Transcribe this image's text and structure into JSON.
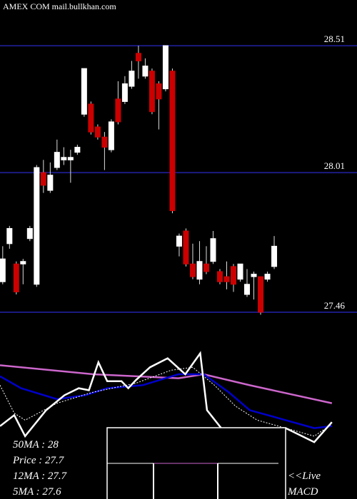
{
  "chart_data": [
    {
      "type": "candlestick",
      "title": "AMEX  COM mail.bullkhan.com",
      "x": [
        0,
        1,
        2,
        3,
        4,
        5,
        6,
        7,
        8,
        9,
        10,
        11,
        12,
        13,
        14,
        15,
        16,
        17,
        18,
        19,
        20,
        21,
        22,
        23,
        24,
        25,
        26,
        27,
        28,
        29,
        30,
        31,
        32,
        33,
        34,
        35,
        36,
        37,
        38,
        39,
        40
      ],
      "open": [
        27.58,
        27.73,
        27.65,
        27.65,
        27.75,
        27.57,
        28.01,
        27.94,
        28.03,
        28.06,
        28.06,
        28.09,
        28.24,
        28.28,
        28.19,
        28.15,
        28.1,
        28.3,
        28.29,
        28.35,
        28.48,
        28.39,
        28.41,
        28.36,
        28.34,
        28.41,
        27.72,
        27.78,
        27.65,
        27.59,
        27.65,
        27.66,
        27.62,
        27.6,
        27.64,
        27.59,
        27.53,
        27.6,
        27.6,
        27.59,
        27.64
      ],
      "high": [
        27.72,
        27.8,
        27.66,
        27.67,
        27.8,
        28.04,
        28.06,
        28.05,
        28.14,
        28.11,
        28.1,
        28.12,
        28.42,
        28.29,
        28.2,
        28.17,
        28.22,
        28.37,
        28.39,
        28.45,
        28.51,
        28.46,
        28.42,
        28.37,
        28.51,
        28.42,
        27.77,
        27.79,
        27.73,
        27.74,
        27.72,
        27.78,
        27.63,
        27.66,
        27.65,
        27.65,
        27.63,
        27.62,
        27.6,
        27.62,
        27.76
      ],
      "low": [
        27.57,
        27.71,
        27.53,
        27.57,
        27.74,
        27.56,
        27.93,
        27.93,
        28.02,
        28.04,
        27.97,
        28.08,
        28.23,
        28.16,
        28.14,
        28.02,
        28.09,
        28.2,
        28.28,
        28.34,
        28.38,
        28.38,
        28.24,
        28.18,
        28.33,
        27.85,
        27.68,
        27.64,
        27.59,
        27.57,
        27.61,
        27.65,
        27.57,
        27.55,
        27.54,
        27.58,
        27.52,
        27.51,
        27.45,
        27.58,
        27.63
      ],
      "close": [
        27.67,
        27.79,
        27.54,
        27.66,
        27.79,
        28.03,
        27.96,
        28.0,
        28.09,
        28.07,
        28.07,
        28.11,
        28.42,
        28.17,
        28.15,
        28.11,
        28.21,
        28.21,
        28.36,
        28.41,
        28.45,
        28.43,
        28.25,
        28.3,
        28.51,
        27.86,
        27.76,
        27.65,
        27.6,
        27.66,
        27.62,
        27.75,
        27.58,
        27.58,
        27.57,
        27.65,
        27.57,
        27.61,
        27.46,
        27.61,
        27.72
      ],
      "up_color": "#ffffff",
      "down_color": "#cc0000",
      "grid_color": "#1a1a80",
      "grid": true,
      "xlim": [
        -0.4,
        52.2
      ],
      "ylim": [
        27.37,
        28.69
      ],
      "yticks": [
        28.51,
        28.01,
        27.46
      ]
    },
    {
      "type": "line",
      "xlim": [
        -0.4,
        52.2
      ],
      "ylim": [
        0,
        100
      ],
      "series": [
        {
          "color": "#cc66cc",
          "style": "solid",
          "x": [
            -0.4,
            13.3,
            25.9,
            29.6,
            36.4,
            48.5
          ],
          "values": [
            84,
            75,
            71,
            75,
            64,
            46
          ]
        },
        {
          "color": "#0000cc",
          "style": "solid",
          "x": [
            -0.4,
            2.7,
            8,
            12.2,
            15.4,
            20.6,
            25.9,
            29.6,
            33.3,
            36.4,
            41.7,
            45.9,
            48.5
          ],
          "values": [
            73,
            61,
            50,
            54,
            61,
            64,
            75,
            75,
            57,
            39,
            29,
            21,
            23
          ]
        },
        {
          "color": "#ffffff",
          "style": "dotted",
          "x": [
            -0.4,
            1.7,
            3.3,
            8,
            13.3,
            19.6,
            24.8,
            28,
            31.2,
            34.3,
            37.5,
            41.7,
            45.9,
            48.5
          ],
          "values": [
            64,
            36,
            29,
            46,
            57,
            66,
            79,
            82,
            64,
            43,
            29,
            21,
            13,
            25
          ]
        },
        {
          "color": "#ffffff",
          "style": "solid",
          "x": [
            -0.4,
            1.7,
            3.3,
            6.4,
            9.1,
            11.2,
            12.7,
            14.1,
            15.4,
            17.5,
            18.5,
            19.6,
            21.7,
            24.3,
            26.9,
            29.1,
            30.1,
            32.2,
            34.3,
            41.7,
            45.9,
            48.5
          ],
          "values": [
            23,
            34,
            13,
            39,
            54,
            61,
            59,
            87,
            68,
            68,
            61,
            69,
            82,
            91,
            75,
            96,
            39,
            21,
            18,
            21,
            7,
            27
          ]
        }
      ]
    }
  ],
  "info": {
    "lines": [
      "50MA : 28",
      "Price  : 27.7",
      "12MA : 27.7",
      "5MA : 27.6"
    ],
    "live": "<<Live",
    "macd": "MACD"
  }
}
